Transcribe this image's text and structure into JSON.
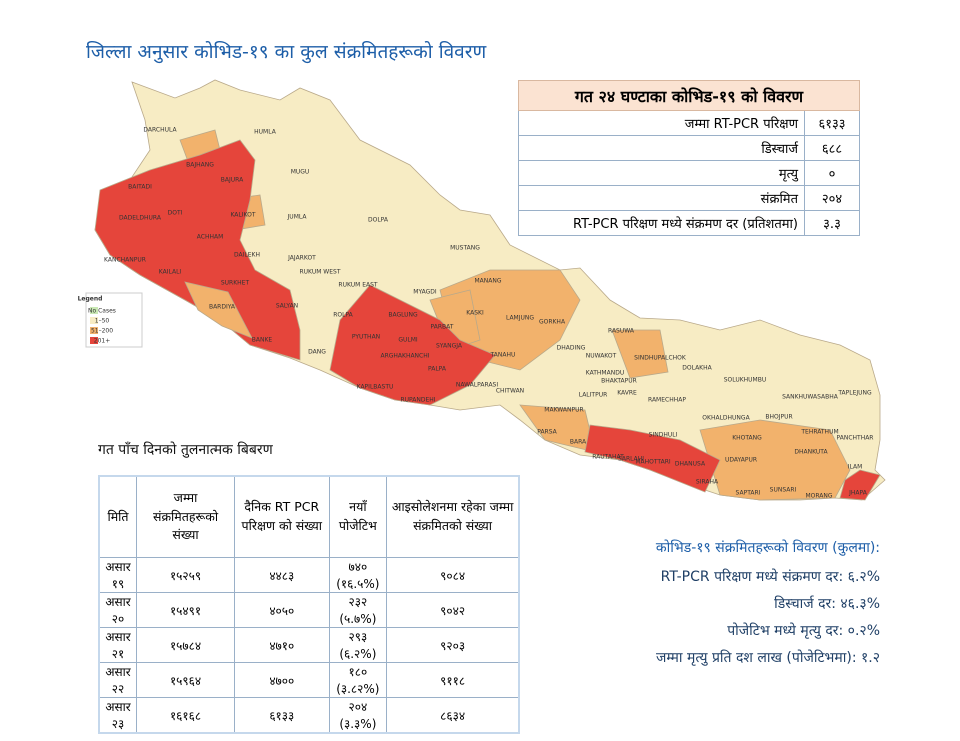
{
  "title": "जिल्ला अनुसार कोभिड-१९ का कुल संक्रमितहरूको विवरण",
  "last24": {
    "title": "गत २४ घण्टाका कोभिड-१९ को विवरण",
    "rows": [
      [
        "जम्मा RT-PCR परिक्षण",
        "६१३३"
      ],
      [
        "डिस्चार्ज",
        "६८८"
      ],
      [
        "मृत्यु",
        "०"
      ],
      [
        "संक्रमित",
        "२०४"
      ],
      [
        "RT-PCR परिक्षण मध्ये संक्रमण दर (प्रतिशतमा)",
        "३.३"
      ]
    ]
  },
  "legend": {
    "title": "Legend",
    "items": [
      {
        "label": "No Cases",
        "color": "#c9e8b4"
      },
      {
        "label": "1–50",
        "color": "#f7ecc4"
      },
      {
        "label": "51–200",
        "color": "#f2b26c"
      },
      {
        "label": "201+",
        "color": "#e5453b"
      }
    ]
  },
  "map": {
    "districts": [
      "DARCHULA",
      "HUMLA",
      "BAJHANG",
      "BAJURA",
      "MUGU",
      "BAITADI",
      "DOTI",
      "DADELDHURA",
      "KALIKOT",
      "JUMLA",
      "DOLPA",
      "ACHHAM",
      "DAILEKH",
      "JAJARKOT",
      "KANCHANPUR",
      "KAILALI",
      "SURKHET",
      "RUKUM WEST",
      "RUKUM EAST",
      "MUSTANG",
      "MYAGDI",
      "MANANG",
      "BARDIYA",
      "SALYAN",
      "ROLPA",
      "KASKI",
      "BAGLUNG",
      "LAMJUNG",
      "GORKHA",
      "RASUWA",
      "PARBAT",
      "BANKE",
      "PYUTHAN",
      "GULMI",
      "SYANGJA",
      "TANAHU",
      "DHADING",
      "NUWAKOT",
      "SINDHUPALCHOK",
      "DANG",
      "ARGHAKHANCHI",
      "DOLAKHA",
      "PALPA",
      "KATHMANDU",
      "BHAKTAPUR",
      "KAPILBASTU",
      "NAWALPARASI",
      "CHITWAN",
      "LALITPUR",
      "KAVRE",
      "RAMECHHAP",
      "SOLUKHUMBU",
      "SANKHUWASABHA",
      "TAPLEJUNG",
      "RUPANDEHI",
      "MAKWANPUR",
      "OKHALDHUNGA",
      "BHOJPUR",
      "TEHRATHUM",
      "PANCHTHAR",
      "PARSA",
      "SINDHULI",
      "KHOTANG",
      "UDAYAPUR",
      "DHANKUTA",
      "BARA",
      "RAUTAHAT",
      "SARLAHI",
      "MAHOTTARI",
      "DHANUSA",
      "ILAM",
      "SIRAHA",
      "SAPTARI",
      "SUNSARI",
      "MORANG",
      "JHAPA"
    ]
  },
  "five_day": {
    "title": "गत पाँच दिनको तुलनात्मक बिबरण",
    "headers": [
      "मिति",
      "जम्मा संक्रमितहरूको संख्या",
      "दैनिक RT PCR परिक्षण को संख्या",
      "नयाँ पोजेटिभ",
      "आइसोलेशनमा रहेका जम्मा संक्रमितको संख्या"
    ],
    "rows": [
      [
        "असार १९",
        "१५२५९",
        "४४८३",
        "७४० (१६.५%)",
        "९०८४"
      ],
      [
        "असार २०",
        "१५४९१",
        "४०५०",
        "२३२ (५.७%)",
        "९०४२"
      ],
      [
        "असार २१",
        "१५७८४",
        "४७१०",
        "२९३ (६.२%)",
        "९२०३"
      ],
      [
        "असार २२",
        "१५९६४",
        "४७००",
        "१८० (३.८२%)",
        "९११८"
      ],
      [
        "असार २३",
        "१६१६८",
        "६१३३",
        "२०४ (३.३%)",
        "८६३४"
      ]
    ]
  },
  "summary": {
    "title": "कोभिड-१९ संक्रमितहरूको विवरण (कुलमा):",
    "lines": [
      "RT-PCR परिक्षण मध्ये संक्रमण दर: ६.२%",
      "डिस्चार्ज दर: ४६.३%",
      "पोजेटिभ मध्ये मृत्यु दर: ०.२%",
      "जम्मा मृत्यु प्रति दश लाख (पोजेटिभमा): १.२"
    ]
  }
}
